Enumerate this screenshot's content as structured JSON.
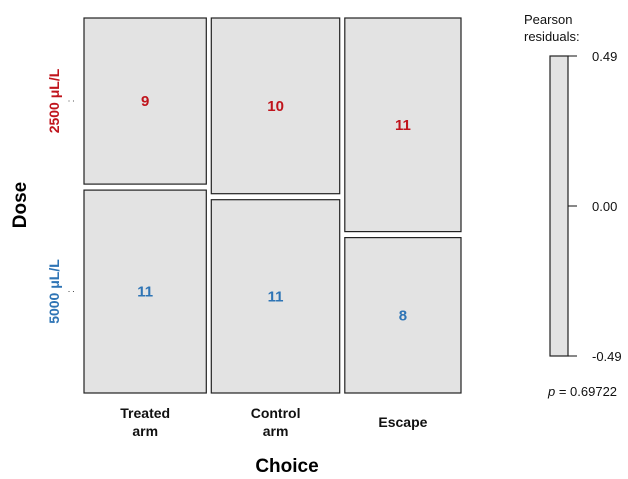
{
  "chart_data": {
    "type": "mosaic",
    "x_title": "Choice",
    "y_title": "Dose",
    "categories": [
      {
        "label": "Treated arm",
        "lines": [
          "Treated",
          "arm"
        ]
      },
      {
        "label": "Control arm",
        "lines": [
          "Control",
          "arm"
        ]
      },
      {
        "label": "Escape",
        "lines": [
          "Escape"
        ]
      }
    ],
    "rows": [
      {
        "label": "2500 μL/L",
        "color": "#c0141c"
      },
      {
        "label": "5000 μL/L",
        "color": "#2e74b5"
      }
    ],
    "counts": [
      [
        9,
        10,
        11
      ],
      [
        11,
        11,
        8
      ]
    ],
    "legend": {
      "title_lines": [
        "Pearson",
        "residuals:"
      ],
      "max_label": "0.49",
      "mid_label": "0.00",
      "min_label": "-0.49",
      "fill": "#e3e3e3"
    },
    "p_label": "p",
    "p_value_text": " = 0.69722"
  }
}
